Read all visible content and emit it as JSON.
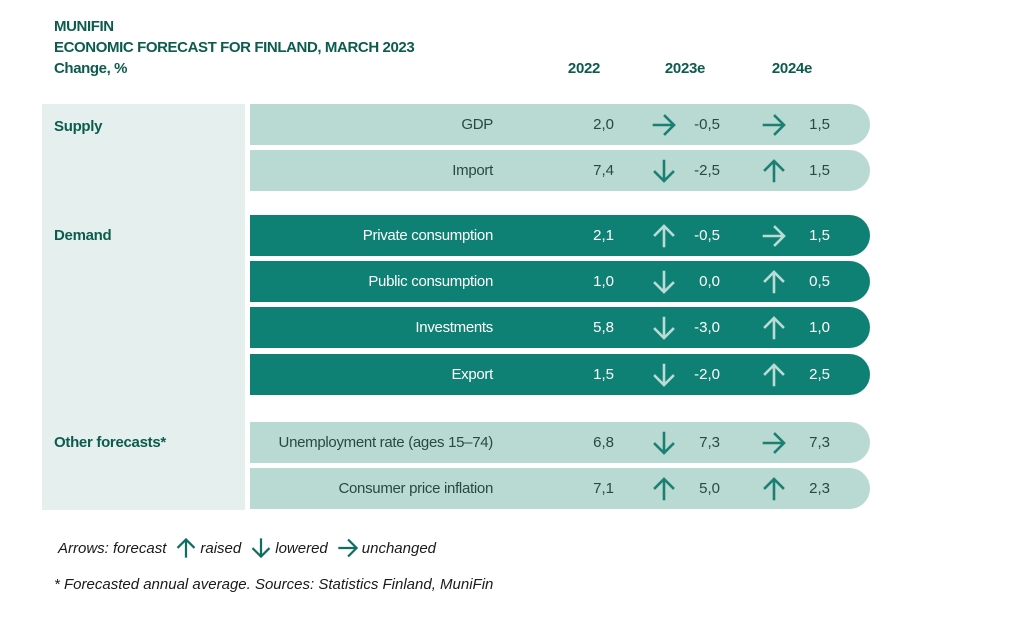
{
  "header": {
    "org": "MUNIFIN",
    "title": "ECONOMIC FORECAST FOR FINLAND, MARCH 2023",
    "subtitle": "Change, %"
  },
  "columns": {
    "y2022": "2022",
    "y2023": "2023e",
    "y2024": "2024e"
  },
  "groups": {
    "supply": "Supply",
    "demand": "Demand",
    "other": "Other forecasts*"
  },
  "rows": [
    {
      "label": "GDP",
      "v2022": "2,0",
      "v2023": "-0,5",
      "a2023": "unchanged",
      "v2024": "1,5",
      "a2024": "unchanged"
    },
    {
      "label": "Import",
      "v2022": "7,4",
      "v2023": "-2,5",
      "a2023": "lowered",
      "v2024": "1,5",
      "a2024": "raised"
    },
    {
      "label": "Private consumption",
      "v2022": "2,1",
      "v2023": "-0,5",
      "a2023": "raised",
      "v2024": "1,5",
      "a2024": "unchanged"
    },
    {
      "label": "Public consumption",
      "v2022": "1,0",
      "v2023": "0,0",
      "a2023": "lowered",
      "v2024": "0,5",
      "a2024": "raised"
    },
    {
      "label": "Investments",
      "v2022": "5,8",
      "v2023": "-3,0",
      "a2023": "lowered",
      "v2024": "1,0",
      "a2024": "raised"
    },
    {
      "label": "Export",
      "v2022": "1,5",
      "v2023": "-2,0",
      "a2023": "lowered",
      "v2024": "2,5",
      "a2024": "raised"
    },
    {
      "label": "Unemployment rate (ages 15–74)",
      "v2022": "6,8",
      "v2023": "7,3",
      "a2023": "lowered",
      "v2024": "7,3",
      "a2024": "unchanged"
    },
    {
      "label": "Consumer price inflation",
      "v2022": "7,1",
      "v2023": "5,0",
      "a2023": "raised",
      "v2024": "2,3",
      "a2024": "raised"
    }
  ],
  "legend": {
    "prefix": "Arrows: forecast",
    "raised": "raised",
    "lowered": "lowered",
    "unchanged": "unchanged"
  },
  "footnote": "* Forecasted annual average. Sources: Statistics Finland, MuniFin",
  "colors": {
    "dark_green": "#0e8174",
    "light_green": "#b9d9d3",
    "panel": "#e5f0ee",
    "text": "#0c5c4e"
  }
}
